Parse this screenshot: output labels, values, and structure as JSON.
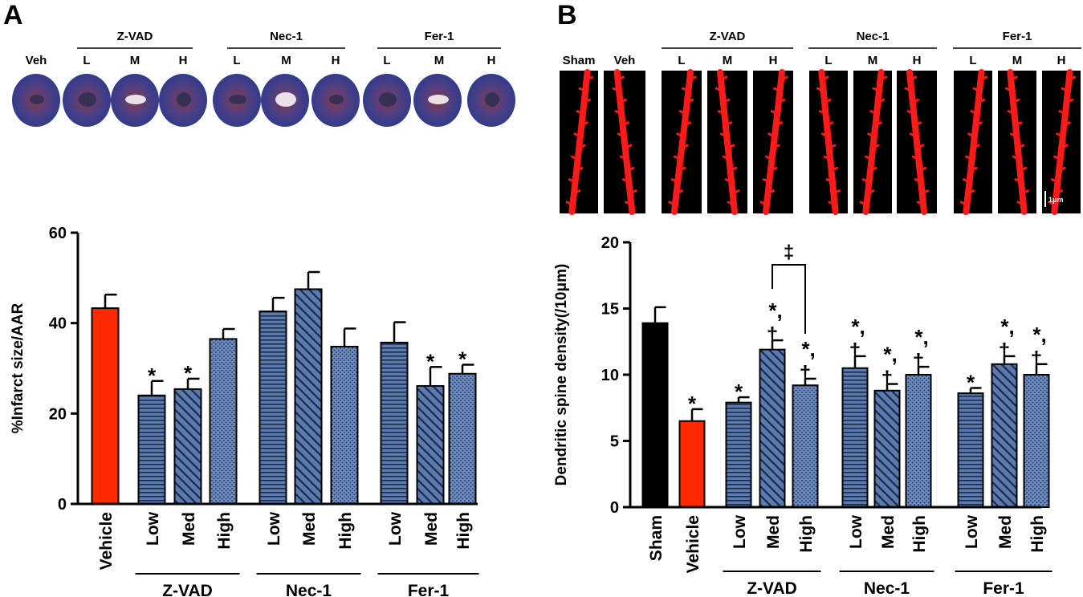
{
  "colors": {
    "sham": "#000000",
    "vehicle": "#ff2a00",
    "treatment": "#5b7bb0",
    "pattern_line": "#1b2a44",
    "dendrite": "#ff1a1a",
    "heart_blue": "#3a4a9a",
    "heart_red": "#8a3a4a"
  },
  "panel_A": {
    "label": "A",
    "images": {
      "veh_label": "Veh",
      "groups": [
        {
          "name": "Z-VAD",
          "doses": [
            "L",
            "M",
            "H"
          ]
        },
        {
          "name": "Nec-1",
          "doses": [
            "L",
            "M",
            "H"
          ]
        },
        {
          "name": "Fer-1",
          "doses": [
            "L",
            "M",
            "H"
          ]
        }
      ]
    }
  },
  "panel_B": {
    "label": "B",
    "images": {
      "sham_label": "Sham",
      "veh_label": "Veh",
      "scale_bar": "1μm",
      "groups": [
        {
          "name": "Z-VAD",
          "doses": [
            "L",
            "M",
            "H"
          ]
        },
        {
          "name": "Nec-1",
          "doses": [
            "L",
            "M",
            "H"
          ]
        },
        {
          "name": "Fer-1",
          "doses": [
            "L",
            "M",
            "H"
          ]
        }
      ]
    }
  },
  "chart_data": [
    {
      "panel": "A",
      "type": "bar",
      "title": "",
      "ylabel": "%Infarct size/AAR",
      "xlabel": "",
      "ylim": [
        0,
        60
      ],
      "yticks": [
        0,
        20,
        40,
        60
      ],
      "categories": [
        "Vehicle",
        "Low",
        "Med",
        "High",
        "Low",
        "Med",
        "High",
        "Low",
        "Med",
        "High"
      ],
      "values": [
        43.3,
        24.0,
        25.4,
        36.5,
        42.6,
        47.5,
        34.8,
        35.7,
        26.1,
        28.8
      ],
      "errors": [
        3.0,
        3.2,
        2.3,
        2.2,
        3.0,
        3.8,
        4.0,
        4.5,
        4.2,
        2.0
      ],
      "patterns": [
        "vehicle",
        "horizontal",
        "diagonal",
        "dots",
        "horizontal",
        "diagonal",
        "dots",
        "horizontal",
        "diagonal",
        "dots"
      ],
      "annotations": [
        "",
        "*",
        "*",
        "",
        "",
        "",
        "",
        "",
        "*",
        "*"
      ],
      "group_labels": [
        {
          "name": "Z-VAD",
          "first": 1,
          "last": 3
        },
        {
          "name": "Nec-1",
          "first": 4,
          "last": 6
        },
        {
          "name": "Fer-1",
          "first": 7,
          "last": 9
        }
      ]
    },
    {
      "panel": "B",
      "type": "bar",
      "title": "",
      "ylabel": "Dendritic spine density(/10μm)",
      "xlabel": "",
      "ylim": [
        0,
        20
      ],
      "yticks": [
        0,
        5,
        10,
        15,
        20
      ],
      "categories": [
        "Sham",
        "Vehicle",
        "Low",
        "Med",
        "High",
        "Low",
        "Med",
        "High",
        "Low",
        "Med",
        "High"
      ],
      "values": [
        13.9,
        6.5,
        7.9,
        11.9,
        9.2,
        10.5,
        8.8,
        10.0,
        8.6,
        10.8,
        10.0
      ],
      "errors": [
        1.2,
        0.9,
        0.4,
        0.7,
        0.5,
        0.9,
        0.5,
        0.6,
        0.4,
        0.6,
        0.8
      ],
      "patterns": [
        "sham",
        "vehicle",
        "horizontal",
        "diagonal",
        "dots",
        "horizontal",
        "diagonal",
        "dots",
        "horizontal",
        "diagonal",
        "dots"
      ],
      "annotations": [
        "",
        "*",
        "*",
        "*,\n†",
        "*,\n†",
        "*,\n†",
        "*,\n†",
        "*,\n†",
        "*",
        "*,\n†",
        "*,\n†"
      ],
      "bracket": {
        "from": 3,
        "to": 4,
        "symbol": "‡"
      },
      "group_labels": [
        {
          "name": "Z-VAD",
          "first": 2,
          "last": 4
        },
        {
          "name": "Nec-1",
          "first": 5,
          "last": 7
        },
        {
          "name": "Fer-1",
          "first": 8,
          "last": 10
        }
      ]
    }
  ]
}
